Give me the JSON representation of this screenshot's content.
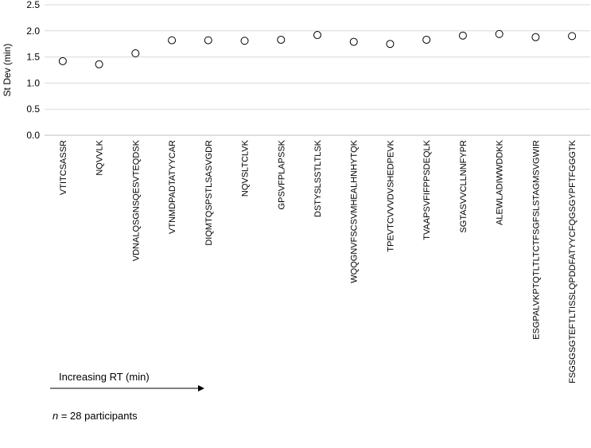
{
  "chart_data": {
    "type": "scatter",
    "ylabel": "St Dev (min)",
    "xlabel": "",
    "ylim": [
      0,
      2.5
    ],
    "yticks": [
      "0.0",
      "0.5",
      "1.0",
      "1.5",
      "2.0",
      "2.5"
    ],
    "grid": "horizontal",
    "marker": "open-circle",
    "categories": [
      "VTITCSASSR",
      "NQVVLK",
      "VDNALQSGNSQESVTEQDSK",
      "VTNMDPADTATYYCAR",
      "DIQMTQSPSTLSASVGDR",
      "NQVSLTCLVK",
      "GPSVFPLAPSSK",
      "DSTYSLSSTLTLSK",
      "WQQGNVFSCSVMHEALHNHYTQK",
      "TPEVTCVVVDVSHEDPEVK",
      "TVAAPSVFIFPPSDEQLK",
      "SGTASVVCLLNNFYPR",
      "ALEWLADIWWDDKK",
      "ESGPALVKPTQTLTLTCTFSGFSLSTAGMSVGWIR",
      "FSGSGSGTEFTLTISSLQPDDFATYYCFQGSGYPFTFGGGTK"
    ],
    "values": [
      1.42,
      1.36,
      1.57,
      1.82,
      1.82,
      1.81,
      1.83,
      1.92,
      1.79,
      1.75,
      1.83,
      1.91,
      1.94,
      1.88,
      1.9
    ]
  },
  "annotations": {
    "rt_label": "Increasing RT (min)",
    "n_var": "n",
    "n_text": " = 28 participants"
  },
  "colors": {
    "grid": "#d9d9d9",
    "marker_stroke": "#000000",
    "marker_fill": "#ffffff"
  }
}
